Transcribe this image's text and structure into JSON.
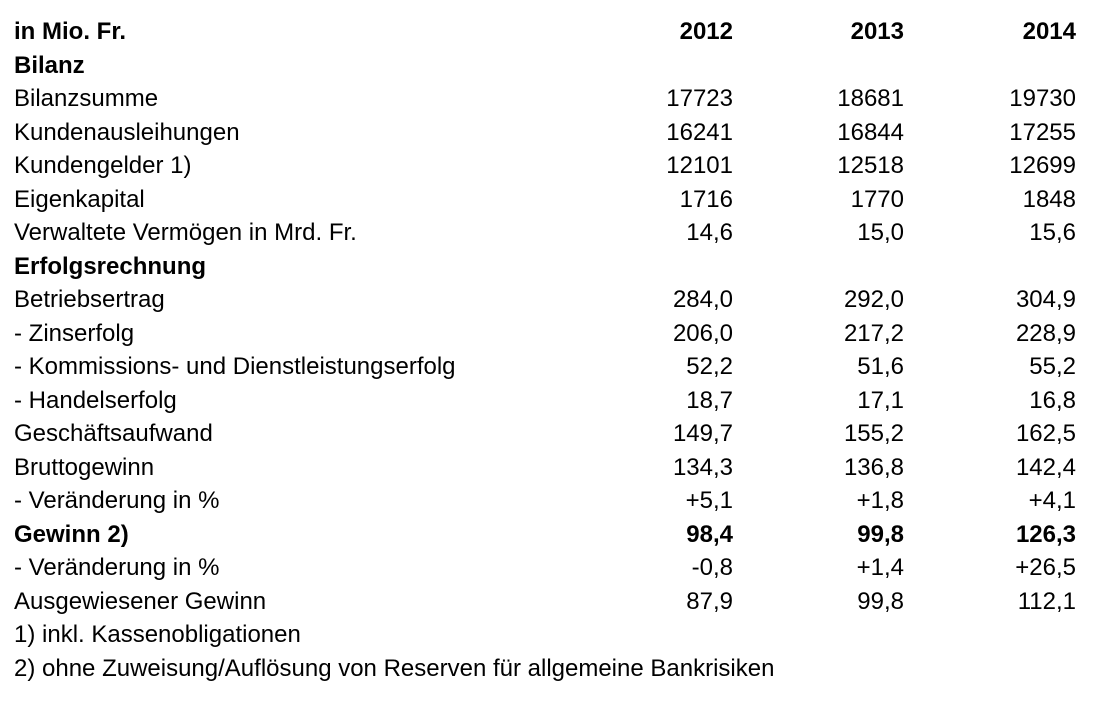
{
  "table": {
    "header": {
      "label": "in Mio. Fr.",
      "years": [
        "2012",
        "2013",
        "2014"
      ]
    },
    "rows": [
      {
        "label": "Bilanz",
        "values": [
          "",
          "",
          ""
        ],
        "style": "section"
      },
      {
        "label": "Bilanzsumme",
        "values": [
          "17723",
          "18681",
          "19730"
        ],
        "style": "normal"
      },
      {
        "label": "Kundenausleihungen",
        "values": [
          "16241",
          "16844",
          "17255"
        ],
        "style": "normal"
      },
      {
        "label": "Kundengelder 1)",
        "values": [
          "12101",
          "12518",
          "12699"
        ],
        "style": "normal"
      },
      {
        "label": "Eigenkapital",
        "values": [
          "1716",
          "1770",
          "1848"
        ],
        "style": "normal"
      },
      {
        "label": "Verwaltete Vermögen in Mrd. Fr.",
        "values": [
          "14,6",
          "15,0",
          "15,6"
        ],
        "style": "normal"
      },
      {
        "label": "Erfolgsrechnung",
        "values": [
          "",
          "",
          ""
        ],
        "style": "section"
      },
      {
        "label": "Betriebsertrag",
        "values": [
          "284,0",
          "292,0",
          "304,9"
        ],
        "style": "normal"
      },
      {
        "label": "- Zinserfolg",
        "values": [
          "206,0",
          "217,2",
          "228,9"
        ],
        "style": "normal"
      },
      {
        "label": "- Kommissions- und Dienstleistungserfolg",
        "values": [
          "52,2",
          "51,6",
          "55,2"
        ],
        "style": "normal"
      },
      {
        "label": "- Handelserfolg",
        "values": [
          "18,7",
          "17,1",
          "16,8"
        ],
        "style": "normal"
      },
      {
        "label": "Geschäftsaufwand",
        "values": [
          "149,7",
          "155,2",
          "162,5"
        ],
        "style": "normal"
      },
      {
        "label": "Bruttogewinn",
        "values": [
          "134,3",
          "136,8",
          "142,4"
        ],
        "style": "normal"
      },
      {
        "label": "- Veränderung in %",
        "values": [
          "+5,1",
          "+1,8",
          "+4,1"
        ],
        "style": "normal"
      },
      {
        "label": "Gewinn 2)",
        "values": [
          "98,4",
          "99,8",
          "126,3"
        ],
        "style": "bold"
      },
      {
        "label": "- Veränderung in %",
        "values": [
          "-0,8",
          "+1,4",
          "+26,5"
        ],
        "style": "normal"
      },
      {
        "label": "Ausgewiesener Gewinn",
        "values": [
          "87,9",
          "99,8",
          "112,1"
        ],
        "style": "normal"
      }
    ]
  },
  "footnotes": [
    "1) inkl. Kassenobligationen",
    "2) ohne Zuweisung/Auflösung von Reserven für allgemeine Bankrisiken"
  ]
}
